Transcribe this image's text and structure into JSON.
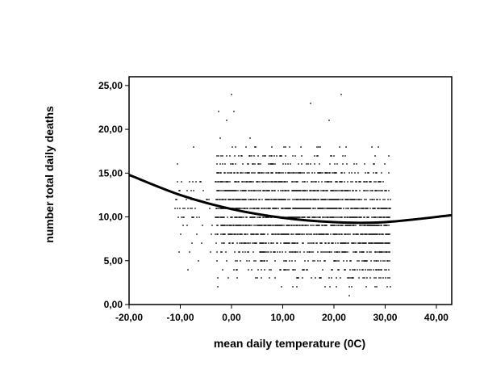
{
  "chart_data": {
    "type": "scatter",
    "title": "",
    "xlabel": "mean daily temperature (0C)",
    "ylabel": "number total daily deaths",
    "xlim": [
      -20,
      43
    ],
    "ylim": [
      0,
      26
    ],
    "x_ticks": [
      -20,
      -10,
      0,
      10,
      20,
      30,
      40
    ],
    "y_ticks": [
      0,
      5,
      10,
      15,
      20,
      25
    ],
    "x_tick_labels": [
      "-20,00",
      "-10,00",
      "0,00",
      "10,00",
      "20,00",
      "30,00",
      "40,00"
    ],
    "y_tick_labels": [
      "0,00",
      "5,00",
      "10,00",
      "15,00",
      "20,00",
      "25,00"
    ],
    "grid": false,
    "legend": "none",
    "point_color": "#000000",
    "line_color": "#000000",
    "scatter_cloud": {
      "x_range": [
        -11,
        31
      ],
      "core_x_range": [
        -3,
        31
      ],
      "y_range": [
        1,
        24
      ],
      "typical_y_range": [
        2,
        19
      ],
      "y_step": 1,
      "n_points_approx": 3000
    },
    "fit_curve": {
      "type": "quadratic",
      "points": [
        {
          "x": -20,
          "y": 14.8
        },
        {
          "x": -10,
          "y": 12.5
        },
        {
          "x": 0,
          "y": 10.9
        },
        {
          "x": 10,
          "y": 9.9
        },
        {
          "x": 20,
          "y": 9.4
        },
        {
          "x": 30,
          "y": 9.4
        },
        {
          "x": 43,
          "y": 10.2
        }
      ]
    }
  }
}
